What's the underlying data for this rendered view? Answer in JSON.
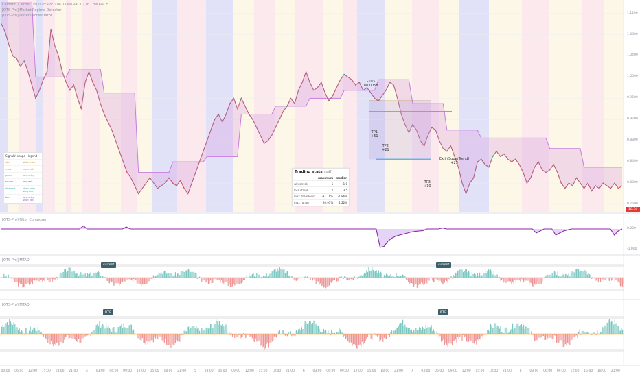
{
  "header": {
    "symbol_line": "Cardano / Tether USDT PERPETUAL CONTRACT · 1h · BINANCE",
    "indicator_1": "[QTS-Pro] Market Regime Detector",
    "indicator_2": "[QTS-Pro] Order Orchestrator"
  },
  "panes": {
    "oscillator_title": "[QTS-Pro] Filter Composer",
    "mtao_1_title": "[QTS-Pro] MTAO",
    "mtao_2_title": "[QTS-Pro] MTAO",
    "tag_current_1": "current",
    "tag_current_2": "current",
    "tag_btc_1": "BTC",
    "tag_btc_2": "BTC"
  },
  "stats_table": {
    "title": "Trading stats",
    "subtitle": "n=47",
    "col_max": "maximum",
    "col_median": "median",
    "rows": [
      {
        "label": "win streak",
        "max": "5",
        "median": "1.0"
      },
      {
        "label": "loss streak",
        "max": "7",
        "median": "3.5"
      },
      {
        "label": "max drawdown",
        "max": "-31.19%",
        "median": "-1.86%"
      },
      {
        "label": "max runup",
        "max": "20.93%",
        "median": "1.22%"
      }
    ]
  },
  "legend": {
    "title": "Signals' shape · legend",
    "rows": [
      {
        "a": "sign",
        "b": "state entry"
      },
      {
        "a": "cross",
        "b": "cross exit"
      },
      {
        "a": "green",
        "b": "long entry"
      },
      {
        "a": "square",
        "b": "long exit"
      },
      {
        "a": "diamond",
        "b": "short entry · sling exit"
      },
      {
        "a": "bars",
        "b": "long entry · short exit"
      }
    ]
  },
  "annotations": {
    "entry_top": "-103",
    "entry_sub": "no.0058",
    "tp1": "TP1",
    "tp1_val": "+51",
    "tp2": "TP2",
    "tp2_val": "+21",
    "tp3": "TP3",
    "tp3_val": "+10",
    "exit": "Exit (SuperTrend)",
    "exit_val": "+23"
  },
  "last_price": "10:54",
  "chart_data": [
    {
      "type": "line",
      "name": "price",
      "x_labels": [
        "00:00",
        "06:00",
        "12:00",
        "15:00",
        "18:00",
        "21:00",
        "4",
        "03:00",
        "06:00",
        "09:00",
        "12:00",
        "15:00",
        "18:00",
        "21:00",
        "5",
        "03:00",
        "06:00",
        "09:00",
        "12:00",
        "15:00",
        "18:00",
        "21:00",
        "6",
        "03:00",
        "06:00",
        "09:00",
        "12:00",
        "15:00",
        "18:00",
        "21:00",
        "7",
        "03:00",
        "06:00",
        "09:00",
        "12:00",
        "15:00",
        "18:00",
        "21:00",
        "8",
        "03:00",
        "06:00",
        "09:00",
        "12:00",
        "15:00",
        "18:00",
        "21:00"
      ],
      "y_ticks": [
        "1.1200",
        "1.0800",
        "1.0400",
        "1.0000",
        "0.9600",
        "0.9200",
        "0.8800",
        "0.8400",
        "0.8000",
        "0.7600"
      ],
      "values": [
        1.1,
        1.085,
        1.06,
        1.04,
        1.035,
        1.02,
        1.03,
        1.01,
        0.985,
        0.96,
        0.975,
        0.995,
        1.01,
        1.09,
        1.06,
        1.04,
        1.01,
        0.99,
        0.975,
        0.985,
        0.96,
        0.94,
        0.99,
        1.01,
        0.99,
        0.975,
        0.95,
        0.93,
        0.915,
        0.9,
        0.88,
        0.86,
        0.84,
        0.82,
        0.81,
        0.795,
        0.78,
        0.79,
        0.8,
        0.81,
        0.8,
        0.79,
        0.795,
        0.8,
        0.81,
        0.8,
        0.795,
        0.805,
        0.79,
        0.78,
        0.8,
        0.82,
        0.84,
        0.86,
        0.88,
        0.9,
        0.92,
        0.93,
        0.915,
        0.93,
        0.95,
        0.96,
        0.94,
        0.96,
        0.945,
        0.93,
        0.92,
        0.905,
        0.89,
        0.875,
        0.88,
        0.89,
        0.905,
        0.92,
        0.935,
        0.945,
        0.96,
        0.95,
        0.975,
        0.99,
        1.01,
        0.99,
        0.975,
        0.98,
        0.99,
        0.97,
        0.955,
        0.965,
        0.98,
        0.995,
        1.005,
        1.0,
        0.995,
        0.985,
        0.99,
        0.975,
        0.98,
        0.97,
        0.96,
        0.955,
        0.965,
        0.975,
        0.99,
        0.985,
        0.96,
        0.93,
        0.91,
        0.895,
        0.91,
        0.9,
        0.88,
        0.87,
        0.89,
        0.905,
        0.9,
        0.88,
        0.865,
        0.86,
        0.87,
        0.85,
        0.83,
        0.8,
        0.78,
        0.8,
        0.81,
        0.84,
        0.845,
        0.835,
        0.83,
        0.85,
        0.86,
        0.85,
        0.855,
        0.845,
        0.84,
        0.845,
        0.835,
        0.82,
        0.8,
        0.81,
        0.83,
        0.84,
        0.825,
        0.82,
        0.825,
        0.835,
        0.82,
        0.8,
        0.79,
        0.8,
        0.795,
        0.81,
        0.8,
        0.79,
        0.8,
        0.785,
        0.795,
        0.79,
        0.8,
        0.795,
        0.79,
        0.8,
        0.79,
        0.795
      ]
    },
    {
      "type": "line",
      "name": "filter",
      "y_ticks": [
        "0.000",
        "-1.000"
      ],
      "ylim": [
        -1.2,
        0.4
      ],
      "values": [
        0,
        0,
        0,
        0,
        0,
        0,
        0,
        0,
        0,
        0,
        0,
        0,
        0,
        0,
        0,
        0,
        0,
        0,
        0,
        0,
        0,
        0.15,
        0,
        0,
        0,
        0,
        0,
        0,
        0,
        0,
        0,
        0,
        0.1,
        0,
        0,
        0,
        0,
        0,
        0,
        0,
        0,
        0,
        0,
        0,
        0,
        0,
        0,
        0,
        0,
        0,
        0,
        0,
        0,
        0,
        0,
        0,
        0,
        0,
        0,
        0,
        0,
        0,
        0,
        0,
        0,
        0,
        0,
        0,
        0,
        0,
        0,
        0,
        0,
        0,
        0,
        0,
        0,
        0,
        0,
        0,
        0,
        0,
        0,
        0,
        0,
        0,
        0,
        0,
        0,
        0,
        0,
        0,
        0,
        0,
        0,
        0,
        0,
        -0.9,
        -0.85,
        -0.6,
        -0.45,
        -0.35,
        -0.3,
        -0.25,
        -0.2,
        -0.15,
        -0.12,
        -0.1,
        -0.08,
        0,
        0,
        0,
        0,
        0.05,
        0,
        0,
        0,
        0,
        0,
        0,
        0,
        0,
        0,
        0,
        0,
        0,
        0,
        0,
        0,
        0,
        0,
        0,
        0,
        0,
        0,
        0,
        0,
        -0.2,
        -0.1,
        0,
        0,
        0,
        -0.3,
        -0.2,
        -0.1,
        -0.05,
        0,
        0,
        0,
        0,
        0,
        0,
        0,
        0,
        0,
        0,
        0,
        -0.3,
        -0.1,
        0
      ]
    }
  ]
}
